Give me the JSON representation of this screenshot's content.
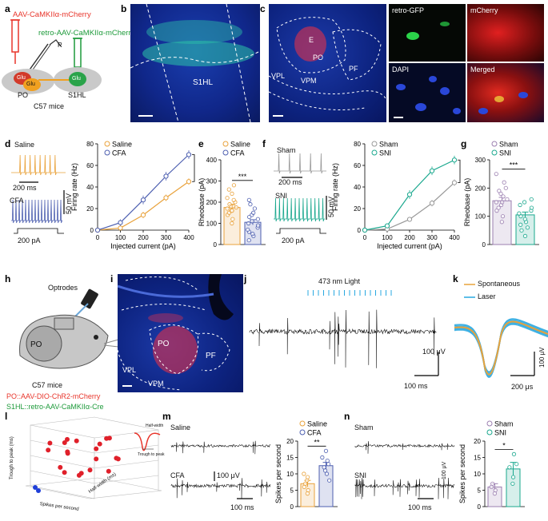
{
  "panels": {
    "a": {
      "label": "a",
      "virus1": "AAV-CaMKIIα-mCherry",
      "virus2": "retro-AAV-CaMKIIα-mCherry",
      "r_label": "R",
      "glu_po1": "Glu",
      "glu_po2": "Glu",
      "glu_s1": "Glu",
      "region_po": "PO",
      "region_s1": "S1HL",
      "mice": "C57 mice",
      "colors": {
        "virus1": "#e8352b",
        "virus2": "#1d9a3a",
        "neuron_red": "#d23a2a",
        "neuron_orange": "#f0a020",
        "neuron_green": "#2aa34a",
        "tissue": "#c9c9c9"
      }
    },
    "b": {
      "label": "b",
      "region": "S1HL"
    },
    "c": {
      "label": "c",
      "labels": [
        "E",
        "PO",
        "VPL",
        "VPM",
        "PF"
      ],
      "insets": [
        "retro-GFP",
        "mCherry",
        "DAPI",
        "Merged"
      ]
    },
    "d": {
      "label": "d",
      "condition_top": "Saline",
      "condition_bottom": "CFA",
      "time_scale": "200 ms",
      "volt_scale": "50 mV",
      "current_scale": "200 pA"
    },
    "e": {
      "label": "e",
      "sig": "***"
    },
    "f": {
      "label": "f",
      "condition_top": "Sham",
      "condition_bottom": "SNI",
      "time_scale": "200 ms",
      "volt_scale": "50 mV",
      "current_scale": "200 pA"
    },
    "g": {
      "label": "g",
      "sig": "***"
    },
    "h": {
      "label": "h",
      "device": "Optrodes",
      "region": "PO",
      "mice": "C57 mice",
      "virus1": "PO::AAV-DIO-ChR2-mCherry",
      "virus2": "S1HL::retro-AAV-CaMKIIα-Cre"
    },
    "i": {
      "label": "i",
      "labels": [
        "PO",
        "PF",
        "VPL",
        "VPM"
      ]
    },
    "j": {
      "label": "j",
      "light": "473 nm Light",
      "volt_scale": "100 μV",
      "time_scale": "100 ms"
    },
    "k": {
      "label": "k",
      "legend": [
        "Spontaneous",
        "Laser"
      ],
      "volt_scale": "100 μV",
      "time_scale": "200 μs",
      "colors": {
        "spontaneous": "#e9a23b",
        "laser": "#29a8e0"
      }
    },
    "l": {
      "label": "l",
      "axis_labels": [
        "Trough to peak (ms)",
        "Half-width (ms)",
        "Spikes per second"
      ],
      "inset_labels": [
        "Half-width",
        "Trough to peak"
      ]
    },
    "m": {
      "label": "m",
      "condition_top": "Saline",
      "condition_bottom": "CFA",
      "volt_scale": "100 μV",
      "time_scale": "100 ms",
      "sig": "**"
    },
    "n": {
      "label": "n",
      "condition_top": "Sham",
      "condition_bottom": "SNI",
      "volt_scale": "100 μV",
      "time_scale": "100 ms",
      "sig": "*"
    }
  },
  "chart_data": [
    {
      "id": "d",
      "type": "line",
      "title": "",
      "xlabel": "Injected current (pA)",
      "ylabel": "Firing rate (Hz)",
      "x": [
        0,
        100,
        200,
        300,
        400
      ],
      "xlim": [
        0,
        400
      ],
      "ylim": [
        0,
        80
      ],
      "xticks": [
        "0",
        "100",
        "200",
        "300",
        "400"
      ],
      "yticks": [
        "0",
        "20",
        "40",
        "60",
        "80"
      ],
      "sig": "***",
      "series": [
        {
          "name": "Saline",
          "color": "#e9a23b",
          "values": [
            0,
            2,
            14,
            30,
            45
          ],
          "err": [
            0.5,
            1.5,
            3,
            3,
            3
          ]
        },
        {
          "name": "CFA",
          "color": "#4d5fb0",
          "values": [
            0,
            7,
            28,
            50,
            70
          ],
          "err": [
            0.5,
            3,
            4,
            4,
            4
          ]
        }
      ]
    },
    {
      "id": "e",
      "type": "bar",
      "title": "",
      "xlabel": "",
      "ylabel": "Rheobase (pA)",
      "ylim": [
        0,
        400
      ],
      "yticks": [
        "0",
        "100",
        "200",
        "300",
        "400"
      ],
      "sig": "***",
      "categories": [
        "Saline",
        "CFA"
      ],
      "colors": [
        "#e9a23b",
        "#4d5fb0"
      ],
      "values": [
        175,
        105
      ],
      "err": [
        15,
        12
      ],
      "points": [
        [
          100,
          120,
          140,
          150,
          160,
          160,
          170,
          175,
          180,
          180,
          190,
          200,
          210,
          220,
          240,
          260,
          280
        ],
        [
          20,
          40,
          50,
          60,
          70,
          80,
          90,
          100,
          110,
          120,
          130,
          140,
          150,
          170,
          190,
          210
        ]
      ]
    },
    {
      "id": "f",
      "type": "line",
      "title": "",
      "xlabel": "Injected current (pA)",
      "ylabel": "Firing rate (Hz)",
      "x": [
        0,
        100,
        200,
        300,
        400
      ],
      "xlim": [
        0,
        400
      ],
      "ylim": [
        0,
        80
      ],
      "xticks": [
        "0",
        "100",
        "200",
        "300",
        "400"
      ],
      "yticks": [
        "0",
        "20",
        "40",
        "60",
        "80"
      ],
      "sig": "***",
      "series": [
        {
          "name": "Sham",
          "color": "#999999",
          "values": [
            0,
            1,
            10,
            25,
            44
          ],
          "err": [
            0.5,
            1,
            2,
            3,
            3
          ]
        },
        {
          "name": "SNI",
          "color": "#1aa88e",
          "values": [
            0,
            4,
            33,
            55,
            65
          ],
          "err": [
            0.5,
            2,
            4,
            4,
            4
          ]
        }
      ]
    },
    {
      "id": "g",
      "type": "bar",
      "title": "",
      "xlabel": "",
      "ylabel": "Rheobase (pA)",
      "ylim": [
        0,
        300
      ],
      "yticks": [
        "0",
        "100",
        "200",
        "300"
      ],
      "sig": "***",
      "categories": [
        "Sham",
        "SNI"
      ],
      "colors": [
        "#9b7fb0",
        "#1aa88e"
      ],
      "values": [
        155,
        105
      ],
      "err": [
        12,
        10
      ],
      "points": [
        [
          80,
          100,
          120,
          130,
          140,
          150,
          150,
          160,
          170,
          180,
          190,
          200,
          220,
          250
        ],
        [
          30,
          50,
          60,
          70,
          80,
          90,
          100,
          110,
          120,
          130,
          140,
          150,
          160
        ]
      ]
    },
    {
      "id": "m",
      "type": "bar",
      "title": "",
      "xlabel": "",
      "ylabel": "Spikes per second",
      "ylim": [
        0,
        20
      ],
      "yticks": [
        "0",
        "5",
        "10",
        "15",
        "20"
      ],
      "sig": "**",
      "categories": [
        "Saline",
        "CFA"
      ],
      "colors": [
        "#e9a23b",
        "#4d5fb0"
      ],
      "values": [
        7,
        12.5
      ],
      "err": [
        1,
        1
      ],
      "points": [
        [
          4,
          5,
          6,
          7,
          8,
          9,
          10
        ],
        [
          8,
          10,
          11,
          12,
          13,
          14,
          15,
          17
        ]
      ]
    },
    {
      "id": "n",
      "type": "bar",
      "title": "",
      "xlabel": "",
      "ylabel": "Spikes per second",
      "ylim": [
        0,
        20
      ],
      "yticks": [
        "0",
        "5",
        "10",
        "15",
        "20"
      ],
      "sig": "*",
      "categories": [
        "Sham",
        "SNI"
      ],
      "colors": [
        "#9b7fb0",
        "#1aa88e"
      ],
      "values": [
        6,
        11.5
      ],
      "err": [
        1,
        2
      ],
      "points": [
        [
          4,
          5,
          6,
          7
        ],
        [
          7,
          9,
          12,
          13,
          16
        ]
      ]
    }
  ]
}
